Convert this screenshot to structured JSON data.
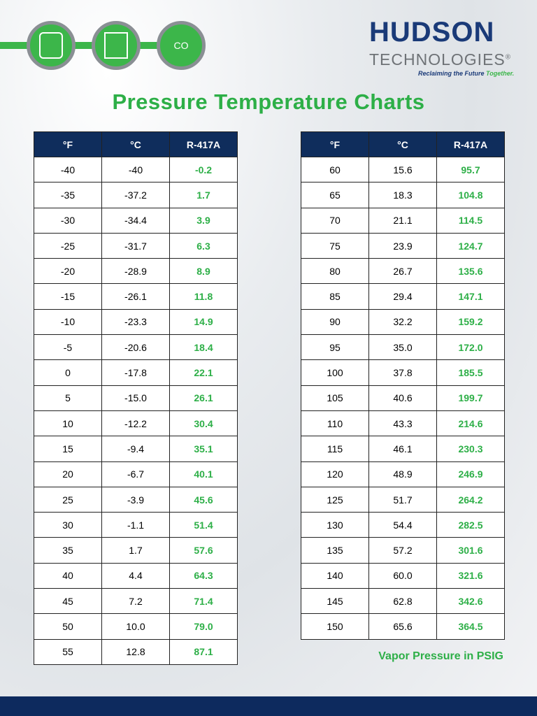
{
  "logo": {
    "name": "HUDSON",
    "sub": "TECHNOLOGIES",
    "mark": "®",
    "tagline_a": "Reclaiming the Future",
    "tagline_b": "Together."
  },
  "icon_text": "CO",
  "title": "Pressure Temperature Charts",
  "tables": [
    {
      "headers": [
        "°F",
        "°C",
        "R-417A"
      ],
      "rows": [
        [
          "-40",
          "-40",
          "-0.2"
        ],
        [
          "-35",
          "-37.2",
          "1.7"
        ],
        [
          "-30",
          "-34.4",
          "3.9"
        ],
        [
          "-25",
          "-31.7",
          "6.3"
        ],
        [
          "-20",
          "-28.9",
          "8.9"
        ],
        [
          "-15",
          "-26.1",
          "11.8"
        ],
        [
          "-10",
          "-23.3",
          "14.9"
        ],
        [
          "-5",
          "-20.6",
          "18.4"
        ],
        [
          "0",
          "-17.8",
          "22.1"
        ],
        [
          "5",
          "-15.0",
          "26.1"
        ],
        [
          "10",
          "-12.2",
          "30.4"
        ],
        [
          "15",
          "-9.4",
          "35.1"
        ],
        [
          "20",
          "-6.7",
          "40.1"
        ],
        [
          "25",
          "-3.9",
          "45.6"
        ],
        [
          "30",
          "-1.1",
          "51.4"
        ],
        [
          "35",
          "1.7",
          "57.6"
        ],
        [
          "40",
          "4.4",
          "64.3"
        ],
        [
          "45",
          "7.2",
          "71.4"
        ],
        [
          "50",
          "10.0",
          "79.0"
        ],
        [
          "55",
          "12.8",
          "87.1"
        ]
      ]
    },
    {
      "headers": [
        "°F",
        "°C",
        "R-417A"
      ],
      "rows": [
        [
          "60",
          "15.6",
          "95.7"
        ],
        [
          "65",
          "18.3",
          "104.8"
        ],
        [
          "70",
          "21.1",
          "114.5"
        ],
        [
          "75",
          "23.9",
          "124.7"
        ],
        [
          "80",
          "26.7",
          "135.6"
        ],
        [
          "85",
          "29.4",
          "147.1"
        ],
        [
          "90",
          "32.2",
          "159.2"
        ],
        [
          "95",
          "35.0",
          "172.0"
        ],
        [
          "100",
          "37.8",
          "185.5"
        ],
        [
          "105",
          "40.6",
          "199.7"
        ],
        [
          "110",
          "43.3",
          "214.6"
        ],
        [
          "115",
          "46.1",
          "230.3"
        ],
        [
          "120",
          "48.9",
          "246.9"
        ],
        [
          "125",
          "51.7",
          "264.2"
        ],
        [
          "130",
          "54.4",
          "282.5"
        ],
        [
          "135",
          "57.2",
          "301.6"
        ],
        [
          "140",
          "60.0",
          "321.6"
        ],
        [
          "145",
          "62.8",
          "342.6"
        ],
        [
          "150",
          "65.6",
          "364.5"
        ]
      ]
    }
  ],
  "note": "Vapor Pressure in PSIG"
}
